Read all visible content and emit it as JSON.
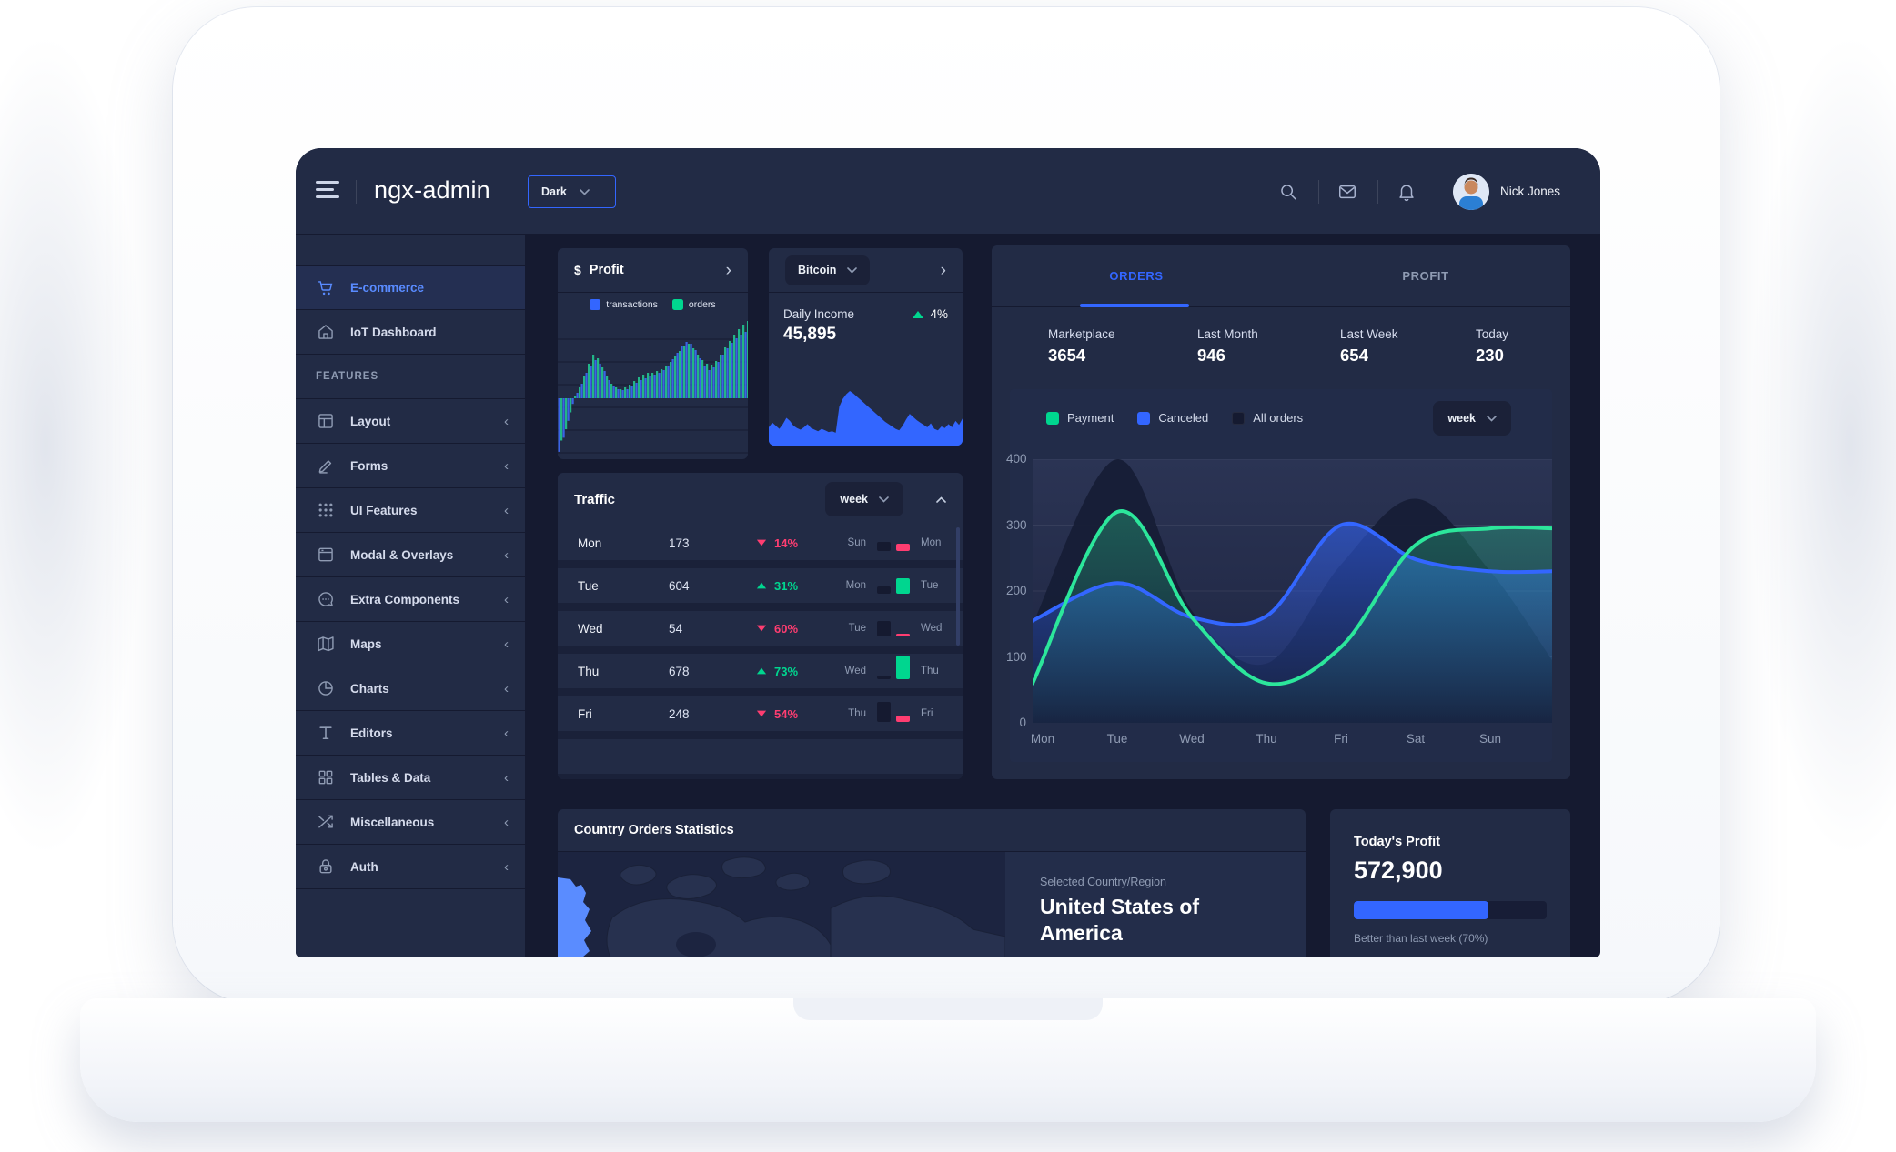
{
  "header": {
    "brand": "ngx-admin",
    "theme_select": {
      "value": "Dark"
    },
    "user": {
      "name": "Nick Jones"
    }
  },
  "sidebar": {
    "items": [
      {
        "label": "E-commerce",
        "icon": "cart-icon",
        "active": true,
        "expandable": false
      },
      {
        "label": "IoT Dashboard",
        "icon": "home-icon",
        "active": false,
        "expandable": false
      },
      {
        "label": "FEATURES",
        "section": true
      },
      {
        "label": "Layout",
        "icon": "layout-icon",
        "expandable": true
      },
      {
        "label": "Forms",
        "icon": "edit-icon",
        "expandable": true
      },
      {
        "label": "UI Features",
        "icon": "keypad-icon",
        "expandable": true
      },
      {
        "label": "Modal & Overlays",
        "icon": "browser-icon",
        "expandable": true
      },
      {
        "label": "Extra Components",
        "icon": "message-icon",
        "expandable": true
      },
      {
        "label": "Maps",
        "icon": "map-icon",
        "expandable": true
      },
      {
        "label": "Charts",
        "icon": "pie-icon",
        "expandable": true
      },
      {
        "label": "Editors",
        "icon": "text-icon",
        "expandable": true
      },
      {
        "label": "Tables & Data",
        "icon": "grid-icon",
        "expandable": true
      },
      {
        "label": "Miscellaneous",
        "icon": "shuffle-icon",
        "expandable": true
      },
      {
        "label": "Auth",
        "icon": "lock-icon",
        "expandable": true
      }
    ]
  },
  "profit_card": {
    "currency": "$",
    "title": "Profit",
    "legend": [
      {
        "label": "transactions",
        "color": "#3366ff"
      },
      {
        "label": "orders",
        "color": "#00d68f"
      }
    ]
  },
  "bitcoin_card": {
    "selector": "Bitcoin",
    "metric_label": "Daily Income",
    "metric_value": "45,895",
    "change": "4%",
    "trend": "up"
  },
  "orders_card": {
    "tabs": [
      {
        "label": "ORDERS",
        "active": true
      },
      {
        "label": "PROFIT",
        "active": false
      }
    ],
    "stats": [
      {
        "label": "Marketplace",
        "value": "3654",
        "x": 62
      },
      {
        "label": "Last Month",
        "value": "946",
        "x": 226
      },
      {
        "label": "Last Week",
        "value": "654",
        "x": 383
      },
      {
        "label": "Today",
        "value": "230",
        "x": 532
      }
    ],
    "legend": [
      {
        "label": "Payment",
        "color": "#00d68f"
      },
      {
        "label": "Canceled",
        "color": "#3366ff"
      },
      {
        "label": "All orders",
        "color": "#151a30"
      }
    ],
    "period_select": "week"
  },
  "traffic_card": {
    "title": "Traffic",
    "period_select": "week",
    "rows": [
      {
        "day": "Mon",
        "value": "173",
        "change": "14%",
        "trend": "down",
        "compare_from": "Sun",
        "compare_to": "Mon",
        "prev_bar": 10,
        "cur_bar": 8
      },
      {
        "day": "Tue",
        "value": "604",
        "change": "31%",
        "trend": "up",
        "compare_from": "Mon",
        "compare_to": "Tue",
        "prev_bar": 8,
        "cur_bar": 17
      },
      {
        "day": "Wed",
        "value": "54",
        "change": "60%",
        "trend": "down",
        "compare_from": "Tue",
        "compare_to": "Wed",
        "prev_bar": 17,
        "cur_bar": 3
      },
      {
        "day": "Thu",
        "value": "678",
        "change": "73%",
        "trend": "up",
        "compare_from": "Wed",
        "compare_to": "Thu",
        "prev_bar": 4,
        "cur_bar": 26
      },
      {
        "day": "Fri",
        "value": "248",
        "change": "54%",
        "trend": "down",
        "compare_from": "Thu",
        "compare_to": "Fri",
        "prev_bar": 22,
        "cur_bar": 7
      }
    ]
  },
  "country_card": {
    "title": "Country Orders Statistics",
    "selected_label": "Selected Country/Region",
    "selected_country": "United States of America"
  },
  "today_profit_card": {
    "title": "Today's Profit",
    "value": "572,900",
    "progress_pct": 70,
    "note": "Better than last week (70%)"
  },
  "colors": {
    "accent_blue": "#3366ff",
    "success_green": "#00d68f",
    "danger_pink": "#ff3d71",
    "card_bg": "#222b45",
    "page_bg": "#151a30",
    "muted_text": "#8f9bb3"
  },
  "chart_data": [
    {
      "type": "area",
      "title": "Orders by week",
      "categories": [
        "Mon",
        "Tue",
        "Wed",
        "Thu",
        "Fri",
        "Sat",
        "Sun"
      ],
      "series": [
        {
          "name": "All orders",
          "color": "#161d36",
          "values": [
            150,
            400,
            170,
            90,
            240,
            340,
            230
          ],
          "edge": 95
        },
        {
          "name": "Canceled",
          "color": "#3366ff",
          "values": [
            155,
            212,
            160,
            162,
            300,
            248,
            230
          ],
          "edge": 230
        },
        {
          "name": "Payment",
          "color": "#2ce69b",
          "values": [
            60,
            320,
            160,
            60,
            115,
            270,
            295
          ],
          "edge": 295
        }
      ],
      "ylim": [
        0,
        400
      ],
      "yticks": [
        0,
        100,
        200,
        300,
        400
      ],
      "grid": true,
      "legend_position": "top"
    },
    {
      "type": "area",
      "title": "Profit mini chart (striped, offsets from baseline)",
      "series": [
        {
          "name": "transactions",
          "color": "#3c66f0",
          "values": [
            -38,
            -28,
            -16,
            -4,
            6,
            16,
            28,
            36,
            42,
            38,
            30,
            20,
            13,
            10,
            9,
            10,
            13,
            17,
            20,
            22,
            24,
            26,
            28,
            31,
            36,
            43,
            50,
            57,
            62,
            60,
            53,
            44,
            36,
            31,
            34,
            40,
            48,
            55,
            61,
            66,
            70,
            73
          ]
        },
        {
          "name": "orders",
          "color": "#23c28e",
          "values": [
            -30,
            -22,
            -10,
            2,
            12,
            24,
            38,
            48,
            44,
            34,
            24,
            16,
            12,
            10,
            12,
            15,
            19,
            23,
            26,
            28,
            28,
            30,
            32,
            35,
            40,
            46,
            52,
            57,
            60,
            55,
            48,
            42,
            38,
            37,
            41,
            48,
            56,
            63,
            70,
            76,
            81,
            85
          ]
        }
      ]
    },
    {
      "type": "area",
      "title": "Bitcoin daily income sparkline",
      "values": [
        14,
        20,
        16,
        12,
        18,
        26,
        22,
        16,
        13,
        11,
        14,
        18,
        13,
        11,
        9,
        12,
        10,
        8,
        9,
        7,
        40,
        50,
        56,
        60,
        57,
        53,
        49,
        45,
        41,
        37,
        33,
        29,
        25,
        21,
        18,
        15,
        12,
        10,
        16,
        24,
        31,
        27,
        23,
        20,
        17,
        14,
        19,
        12,
        10,
        15,
        13,
        18,
        14,
        22,
        17,
        25
      ]
    }
  ]
}
